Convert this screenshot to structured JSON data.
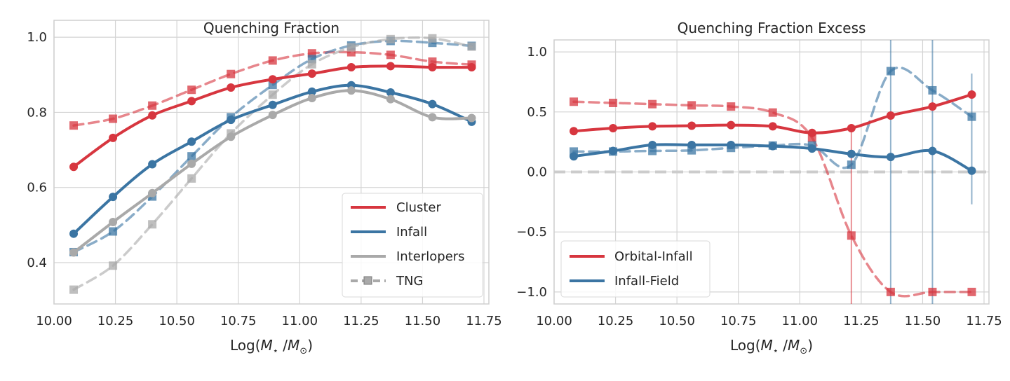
{
  "colors": {
    "red": "#d7363f",
    "blue": "#3b75a3",
    "gray": "#a9a9a9",
    "grid": "#d4d4d4",
    "spine": "#cfcfcf",
    "zero": "#cccccc"
  },
  "chart_data": [
    {
      "type": "line",
      "title": "Quenching Fraction",
      "xlabel_main": "Log(",
      "xlabel_m": "M",
      "xlabel_sub1": "⋆",
      "xlabel_mid": " /",
      "xlabel_sub2": "⊙",
      "xlabel_end": ")",
      "xlim": [
        10.0,
        11.77
      ],
      "ylim": [
        0.29,
        1.045
      ],
      "xticks": [
        "10.00",
        "10.25",
        "10.50",
        "10.75",
        "11.00",
        "11.25",
        "11.50",
        "11.75"
      ],
      "yticks": [
        "0.4",
        "0.6",
        "0.8",
        "1.0"
      ],
      "grid": true,
      "legend_position": "lower right",
      "legend": [
        "Cluster",
        "Infall",
        "Interlopers",
        "TNG"
      ],
      "x": [
        10.08,
        10.24,
        10.4,
        10.56,
        10.72,
        10.89,
        11.05,
        11.21,
        11.37,
        11.54,
        11.7
      ],
      "series": [
        {
          "name": "Cluster",
          "style": "solid",
          "color": "red",
          "values": [
            0.655,
            0.732,
            0.792,
            0.83,
            0.866,
            0.888,
            0.903,
            0.92,
            0.923,
            0.92,
            0.92
          ]
        },
        {
          "name": "Infall",
          "style": "solid",
          "color": "blue",
          "values": [
            0.477,
            0.575,
            0.662,
            0.722,
            0.78,
            0.82,
            0.855,
            0.872,
            0.853,
            0.822,
            0.775
          ]
        },
        {
          "name": "Interlopers",
          "style": "solid",
          "color": "gray",
          "values": [
            0.427,
            0.508,
            0.585,
            0.663,
            0.735,
            0.793,
            0.838,
            0.858,
            0.835,
            0.787,
            0.785
          ]
        },
        {
          "name": "",
          "style": "dashed",
          "color": "red",
          "values": [
            0.765,
            0.783,
            0.818,
            0.86,
            0.902,
            0.938,
            0.957,
            0.96,
            0.953,
            0.935,
            0.927
          ]
        },
        {
          "name": "",
          "style": "dashed",
          "color": "blue",
          "values": [
            0.428,
            0.483,
            0.576,
            0.683,
            0.787,
            0.873,
            0.942,
            0.978,
            0.99,
            0.985,
            0.977
          ]
        },
        {
          "name": "",
          "style": "dashed",
          "color": "gray",
          "values": [
            0.328,
            0.392,
            0.502,
            0.624,
            0.744,
            0.847,
            0.928,
            0.973,
            0.995,
            0.997,
            0.975
          ]
        }
      ]
    },
    {
      "type": "line",
      "title": "Quenching Fraction Excess",
      "xlabel_main": "Log(",
      "xlabel_m": "M",
      "xlabel_sub1": "⋆",
      "xlabel_mid": " /",
      "xlabel_sub2": "⊙",
      "xlabel_end": ")",
      "xlim": [
        10.0,
        11.77
      ],
      "ylim": [
        -1.1,
        1.1
      ],
      "xticks": [
        "10.00",
        "10.25",
        "10.50",
        "10.75",
        "11.00",
        "11.25",
        "11.50",
        "11.75"
      ],
      "yticks": [
        "−1.0",
        "−0.5",
        "0.0",
        "0.5",
        "1.0"
      ],
      "grid": true,
      "zero_line": true,
      "legend_position": "lower left",
      "legend": [
        "Orbital-Infall",
        "Infall-Field"
      ],
      "x": [
        10.08,
        10.24,
        10.4,
        10.56,
        10.72,
        10.89,
        11.05,
        11.21,
        11.37,
        11.54,
        11.7
      ],
      "series": [
        {
          "name": "Orbital-Infall",
          "style": "solid",
          "color": "red",
          "values": [
            0.34,
            0.365,
            0.38,
            0.385,
            0.39,
            0.38,
            0.325,
            0.365,
            0.47,
            0.545,
            0.645
          ]
        },
        {
          "name": "Infall-Field",
          "style": "solid",
          "color": "blue",
          "values": [
            0.13,
            0.175,
            0.225,
            0.225,
            0.225,
            0.215,
            0.195,
            0.15,
            0.125,
            0.175,
            0.01
          ]
        },
        {
          "name": "",
          "style": "dashed",
          "color": "red",
          "values": [
            0.585,
            0.575,
            0.565,
            0.555,
            0.545,
            0.495,
            0.285,
            -0.53,
            -1.0,
            -1.0,
            -1.0
          ]
        },
        {
          "name": "",
          "style": "dashed",
          "color": "blue",
          "values": [
            0.17,
            0.17,
            0.175,
            0.18,
            0.2,
            0.22,
            0.22,
            0.06,
            0.84,
            0.68,
            0.46
          ]
        }
      ]
    }
  ]
}
